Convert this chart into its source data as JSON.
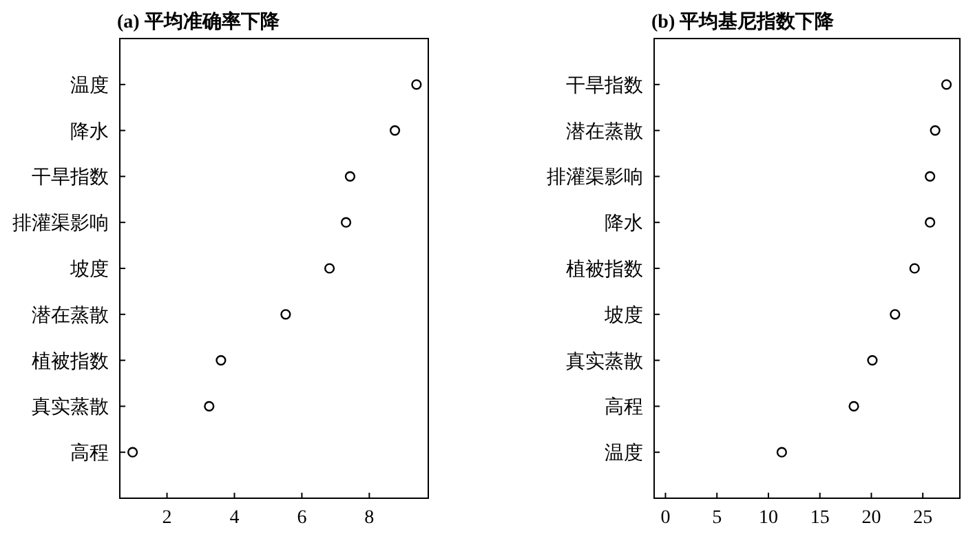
{
  "chart_data": [
    {
      "type": "scatter",
      "title": "(a) 平均准确率下降",
      "orientation": "horizontal",
      "marker": "circle",
      "color": "#000000",
      "categories": [
        "温度",
        "降水",
        "干旱指数",
        "排灌渠影响",
        "坡度",
        "潜在蒸散",
        "植被指数",
        "真实蒸散",
        "高程"
      ],
      "values": [
        9.4,
        8.76,
        7.43,
        7.31,
        6.82,
        5.52,
        3.6,
        3.25,
        0.98
      ],
      "xlim": [
        0.6,
        9.75
      ],
      "xticks": [
        2,
        4,
        6,
        8
      ],
      "grid": false
    },
    {
      "type": "scatter",
      "title": "(b) 平均基尼指数下降",
      "orientation": "horizontal",
      "marker": "circle",
      "color": "#000000",
      "categories": [
        "干旱指数",
        "潜在蒸散",
        "排灌渠影响",
        "降水",
        "植被指数",
        "坡度",
        "真实蒸散",
        "高程",
        "温度"
      ],
      "values": [
        27.3,
        26.2,
        25.7,
        25.7,
        24.2,
        22.3,
        20.1,
        18.3,
        11.3
      ],
      "xlim": [
        -1.1,
        28.6
      ],
      "xticks": [
        0,
        5,
        10,
        15,
        20,
        25
      ],
      "grid": false
    }
  ]
}
